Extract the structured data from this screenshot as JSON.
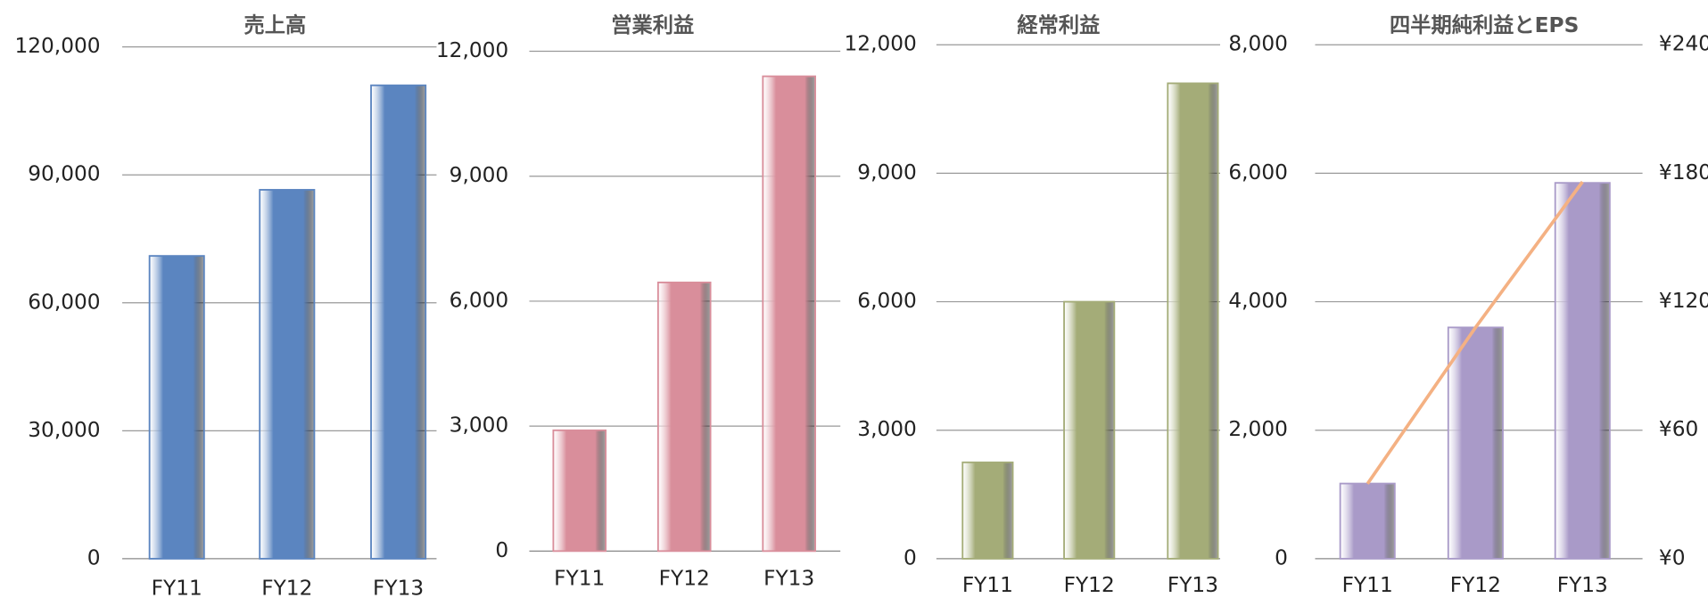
{
  "chart_data": [
    {
      "type": "bar",
      "title": "売上高",
      "categories": [
        "FY11",
        "FY12",
        "FY13"
      ],
      "values": [
        71000,
        86500,
        111000
      ],
      "color": "#5b85c0",
      "ylim": [
        0,
        120000
      ],
      "yticks": [
        0,
        {
          "value": 30000,
          "label": "30,000"
        },
        {
          "value": 60000,
          "label": "60,000"
        },
        {
          "value": 90000,
          "label": "90,000"
        },
        {
          "value": 120000,
          "label": "120,000"
        }
      ],
      "grid": true
    },
    {
      "type": "bar",
      "title": "営業利益",
      "categories": [
        "FY11",
        "FY12",
        "FY13"
      ],
      "values": [
        2900,
        6450,
        11400
      ],
      "color": "#d98e9b",
      "ylim": [
        0,
        12000
      ],
      "yticks": [
        0,
        {
          "value": 3000,
          "label": "3,000"
        },
        {
          "value": 6000,
          "label": "6,000"
        },
        {
          "value": 9000,
          "label": "9,000"
        },
        {
          "value": 12000,
          "label": "12,000"
        }
      ],
      "grid": true
    },
    {
      "type": "bar",
      "title": "経常利益",
      "categories": [
        "FY11",
        "FY12",
        "FY13"
      ],
      "values": [
        2250,
        6000,
        11100
      ],
      "color": "#a4ac78",
      "ylim": [
        0,
        12000
      ],
      "yticks": [
        0,
        {
          "value": 3000,
          "label": "3,000"
        },
        {
          "value": 6000,
          "label": "6,000"
        },
        {
          "value": 9000,
          "label": "9,000"
        },
        {
          "value": 12000,
          "label": "12,000"
        }
      ],
      "grid": true
    },
    {
      "type": "bar",
      "title": "四半期純利益とEPS",
      "categories": [
        "FY11",
        "FY12",
        "FY13"
      ],
      "series": [
        {
          "values": [
            1170,
            3600,
            5850
          ],
          "color": "#a99ac8"
        },
        {
          "values": [
            35,
            108,
            176
          ],
          "color": "#f4b183",
          "axis": "y2",
          "type": "line"
        }
      ],
      "ylim": [
        0,
        8000
      ],
      "yticks": [
        0,
        {
          "value": 2000,
          "label": "2,000"
        },
        {
          "value": 4000,
          "label": "4,000"
        },
        {
          "value": 6000,
          "label": "6,000"
        },
        {
          "value": 8000,
          "label": "8,000"
        }
      ],
      "y2lim": [
        0,
        240
      ],
      "y2ticks": [
        {
          "value": 0,
          "label": "¥0"
        },
        {
          "value": 60,
          "label": "¥60"
        },
        {
          "value": 120,
          "label": "¥120"
        },
        {
          "value": 180,
          "label": "¥180"
        },
        {
          "value": 240,
          "label": "¥240"
        }
      ],
      "grid": true
    }
  ]
}
